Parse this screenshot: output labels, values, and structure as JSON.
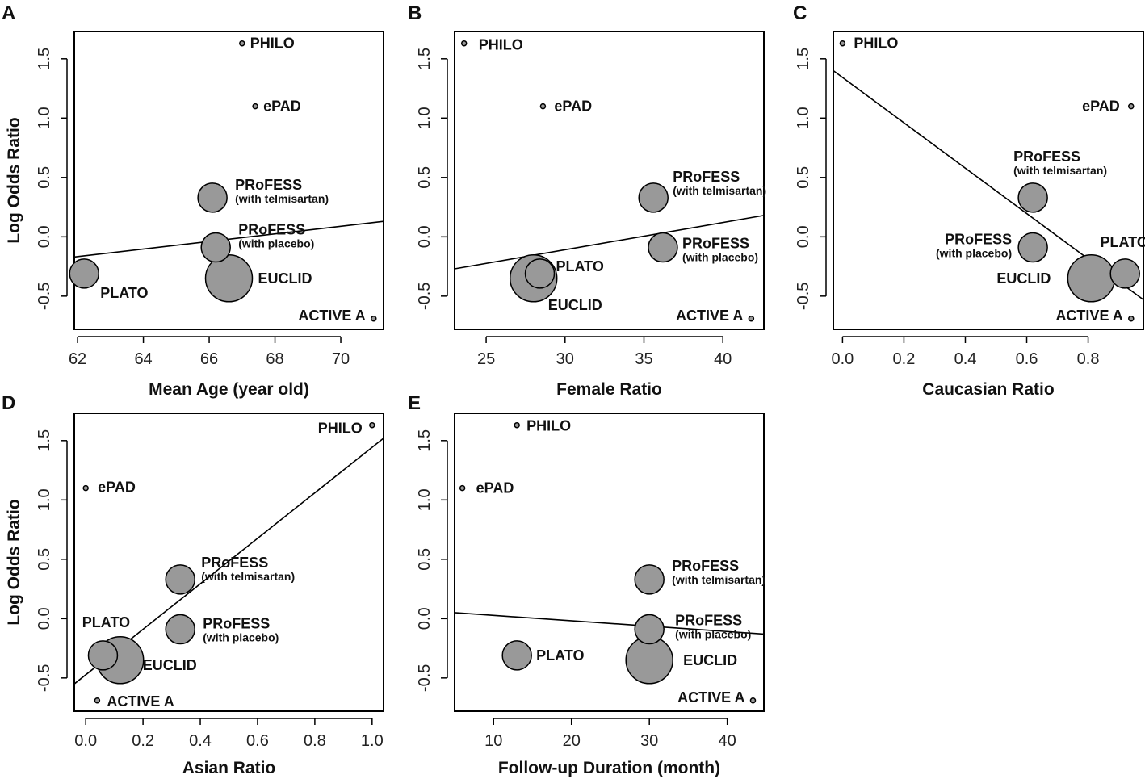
{
  "chart_data": [
    {
      "type": "scatter",
      "panel": "A",
      "xlabel": "Mean Age (year old)",
      "ylabel": "Log Odds Ratio",
      "xlim": [
        61.9,
        71.3
      ],
      "ylim": [
        -0.78,
        1.73
      ],
      "xticks": [
        62,
        64,
        66,
        68,
        70
      ],
      "yticks": [
        -0.5,
        0.0,
        0.5,
        1.0,
        1.5
      ],
      "points": [
        {
          "study": "PHILO",
          "x": 67.0,
          "y": 1.63,
          "size": 1
        },
        {
          "study": "ePAD",
          "x": 67.4,
          "y": 1.1,
          "size": 1
        },
        {
          "study": "PRoFESS",
          "sub": "(with telmisartan)",
          "x": 66.1,
          "y": 0.33,
          "size": 3
        },
        {
          "study": "PRoFESS",
          "sub": "(with placebo)",
          "x": 66.2,
          "y": -0.09,
          "size": 3
        },
        {
          "study": "PLATO",
          "x": 62.2,
          "y": -0.31,
          "size": 3
        },
        {
          "study": "EUCLID",
          "x": 66.6,
          "y": -0.35,
          "size": 5
        },
        {
          "study": "ACTIVE A",
          "x": 71.0,
          "y": -0.69,
          "size": 1
        }
      ],
      "regression": {
        "x": [
          61.9,
          71.3
        ],
        "y": [
          -0.17,
          0.13
        ]
      }
    },
    {
      "type": "scatter",
      "panel": "B",
      "xlabel": "Female Ratio",
      "ylabel": "",
      "xlim": [
        23.0,
        42.6
      ],
      "ylim": [
        -0.78,
        1.73
      ],
      "xticks": [
        25,
        30,
        35,
        40
      ],
      "yticks": [
        -0.5,
        0.0,
        0.5,
        1.0,
        1.5
      ],
      "points": [
        {
          "study": "PHILO",
          "x": 23.6,
          "y": 1.63,
          "size": 1
        },
        {
          "study": "ePAD",
          "x": 28.6,
          "y": 1.1,
          "size": 1
        },
        {
          "study": "PRoFESS",
          "sub": "(with telmisartan)",
          "x": 35.6,
          "y": 0.33,
          "size": 3
        },
        {
          "study": "PRoFESS",
          "sub": "(with placebo)",
          "x": 36.2,
          "y": -0.09,
          "size": 3
        },
        {
          "study": "PLATO",
          "x": 28.4,
          "y": -0.31,
          "size": 3
        },
        {
          "study": "EUCLID",
          "x": 28.0,
          "y": -0.35,
          "size": 5
        },
        {
          "study": "ACTIVE A",
          "x": 41.8,
          "y": -0.69,
          "size": 1
        }
      ],
      "regression": {
        "x": [
          23.0,
          42.6
        ],
        "y": [
          -0.27,
          0.18
        ]
      }
    },
    {
      "type": "scatter",
      "panel": "C",
      "xlabel": "Caucasian Ratio",
      "ylabel": "",
      "xlim": [
        -0.03,
        0.98
      ],
      "ylim": [
        -0.78,
        1.73
      ],
      "xticks": [
        0.0,
        0.2,
        0.4,
        0.6,
        0.8
      ],
      "yticks": [
        -0.5,
        0.0,
        0.5,
        1.0,
        1.5
      ],
      "points": [
        {
          "study": "PHILO",
          "x": 0.0,
          "y": 1.63,
          "size": 1
        },
        {
          "study": "ePAD",
          "x": 0.94,
          "y": 1.1,
          "size": 1
        },
        {
          "study": "PRoFESS",
          "sub": "(with telmisartan)",
          "x": 0.62,
          "y": 0.33,
          "size": 3
        },
        {
          "study": "PRoFESS",
          "sub": "(with placebo)",
          "x": 0.62,
          "y": -0.09,
          "size": 3
        },
        {
          "study": "PLATO",
          "x": 0.92,
          "y": -0.31,
          "size": 3
        },
        {
          "study": "EUCLID",
          "x": 0.81,
          "y": -0.35,
          "size": 5
        },
        {
          "study": "ACTIVE A",
          "x": 0.94,
          "y": -0.69,
          "size": 1
        }
      ],
      "regression": {
        "x": [
          -0.03,
          0.98
        ],
        "y": [
          1.4,
          -0.53
        ]
      }
    },
    {
      "type": "scatter",
      "panel": "D",
      "xlabel": "Asian Ratio",
      "ylabel": "Log Odds Ratio",
      "xlim": [
        -0.04,
        1.04
      ],
      "ylim": [
        -0.78,
        1.73
      ],
      "xticks": [
        0.0,
        0.2,
        0.4,
        0.6,
        0.8,
        1.0
      ],
      "yticks": [
        -0.5,
        0.0,
        0.5,
        1.0,
        1.5
      ],
      "points": [
        {
          "study": "PHILO",
          "x": 1.0,
          "y": 1.63,
          "size": 1
        },
        {
          "study": "ePAD",
          "x": 0.0,
          "y": 1.1,
          "size": 1
        },
        {
          "study": "PRoFESS",
          "sub": "(with telmisartan)",
          "x": 0.33,
          "y": 0.33,
          "size": 3
        },
        {
          "study": "PRoFESS",
          "sub": "(with placebo)",
          "x": 0.33,
          "y": -0.09,
          "size": 3
        },
        {
          "study": "PLATO",
          "x": 0.06,
          "y": -0.31,
          "size": 3
        },
        {
          "study": "EUCLID",
          "x": 0.12,
          "y": -0.35,
          "size": 5
        },
        {
          "study": "ACTIVE A",
          "x": 0.04,
          "y": -0.69,
          "size": 1
        }
      ],
      "regression": {
        "x": [
          -0.04,
          1.04
        ],
        "y": [
          -0.55,
          1.52
        ]
      }
    },
    {
      "type": "scatter",
      "panel": "E",
      "xlabel": "Follow-up Duration (month)",
      "ylabel": "",
      "xlim": [
        5.0,
        44.7
      ],
      "ylim": [
        -0.78,
        1.73
      ],
      "xticks": [
        10,
        20,
        30,
        40
      ],
      "yticks": [
        -0.5,
        0.0,
        0.5,
        1.0,
        1.5
      ],
      "points": [
        {
          "study": "PHILO",
          "x": 13.0,
          "y": 1.63,
          "size": 1
        },
        {
          "study": "ePAD",
          "x": 6.0,
          "y": 1.1,
          "size": 1
        },
        {
          "study": "PRoFESS",
          "sub": "(with telmisartan)",
          "x": 30.0,
          "y": 0.33,
          "size": 3
        },
        {
          "study": "PRoFESS",
          "sub": "(with placebo)",
          "x": 30.0,
          "y": -0.09,
          "size": 3
        },
        {
          "study": "PLATO",
          "x": 13.0,
          "y": -0.31,
          "size": 3
        },
        {
          "study": "EUCLID",
          "x": 30.0,
          "y": -0.35,
          "size": 5
        },
        {
          "study": "ACTIVE A",
          "x": 43.3,
          "y": -0.69,
          "size": 1
        }
      ],
      "regression": {
        "x": [
          5.0,
          44.7
        ],
        "y": [
          0.05,
          -0.13
        ]
      }
    }
  ]
}
